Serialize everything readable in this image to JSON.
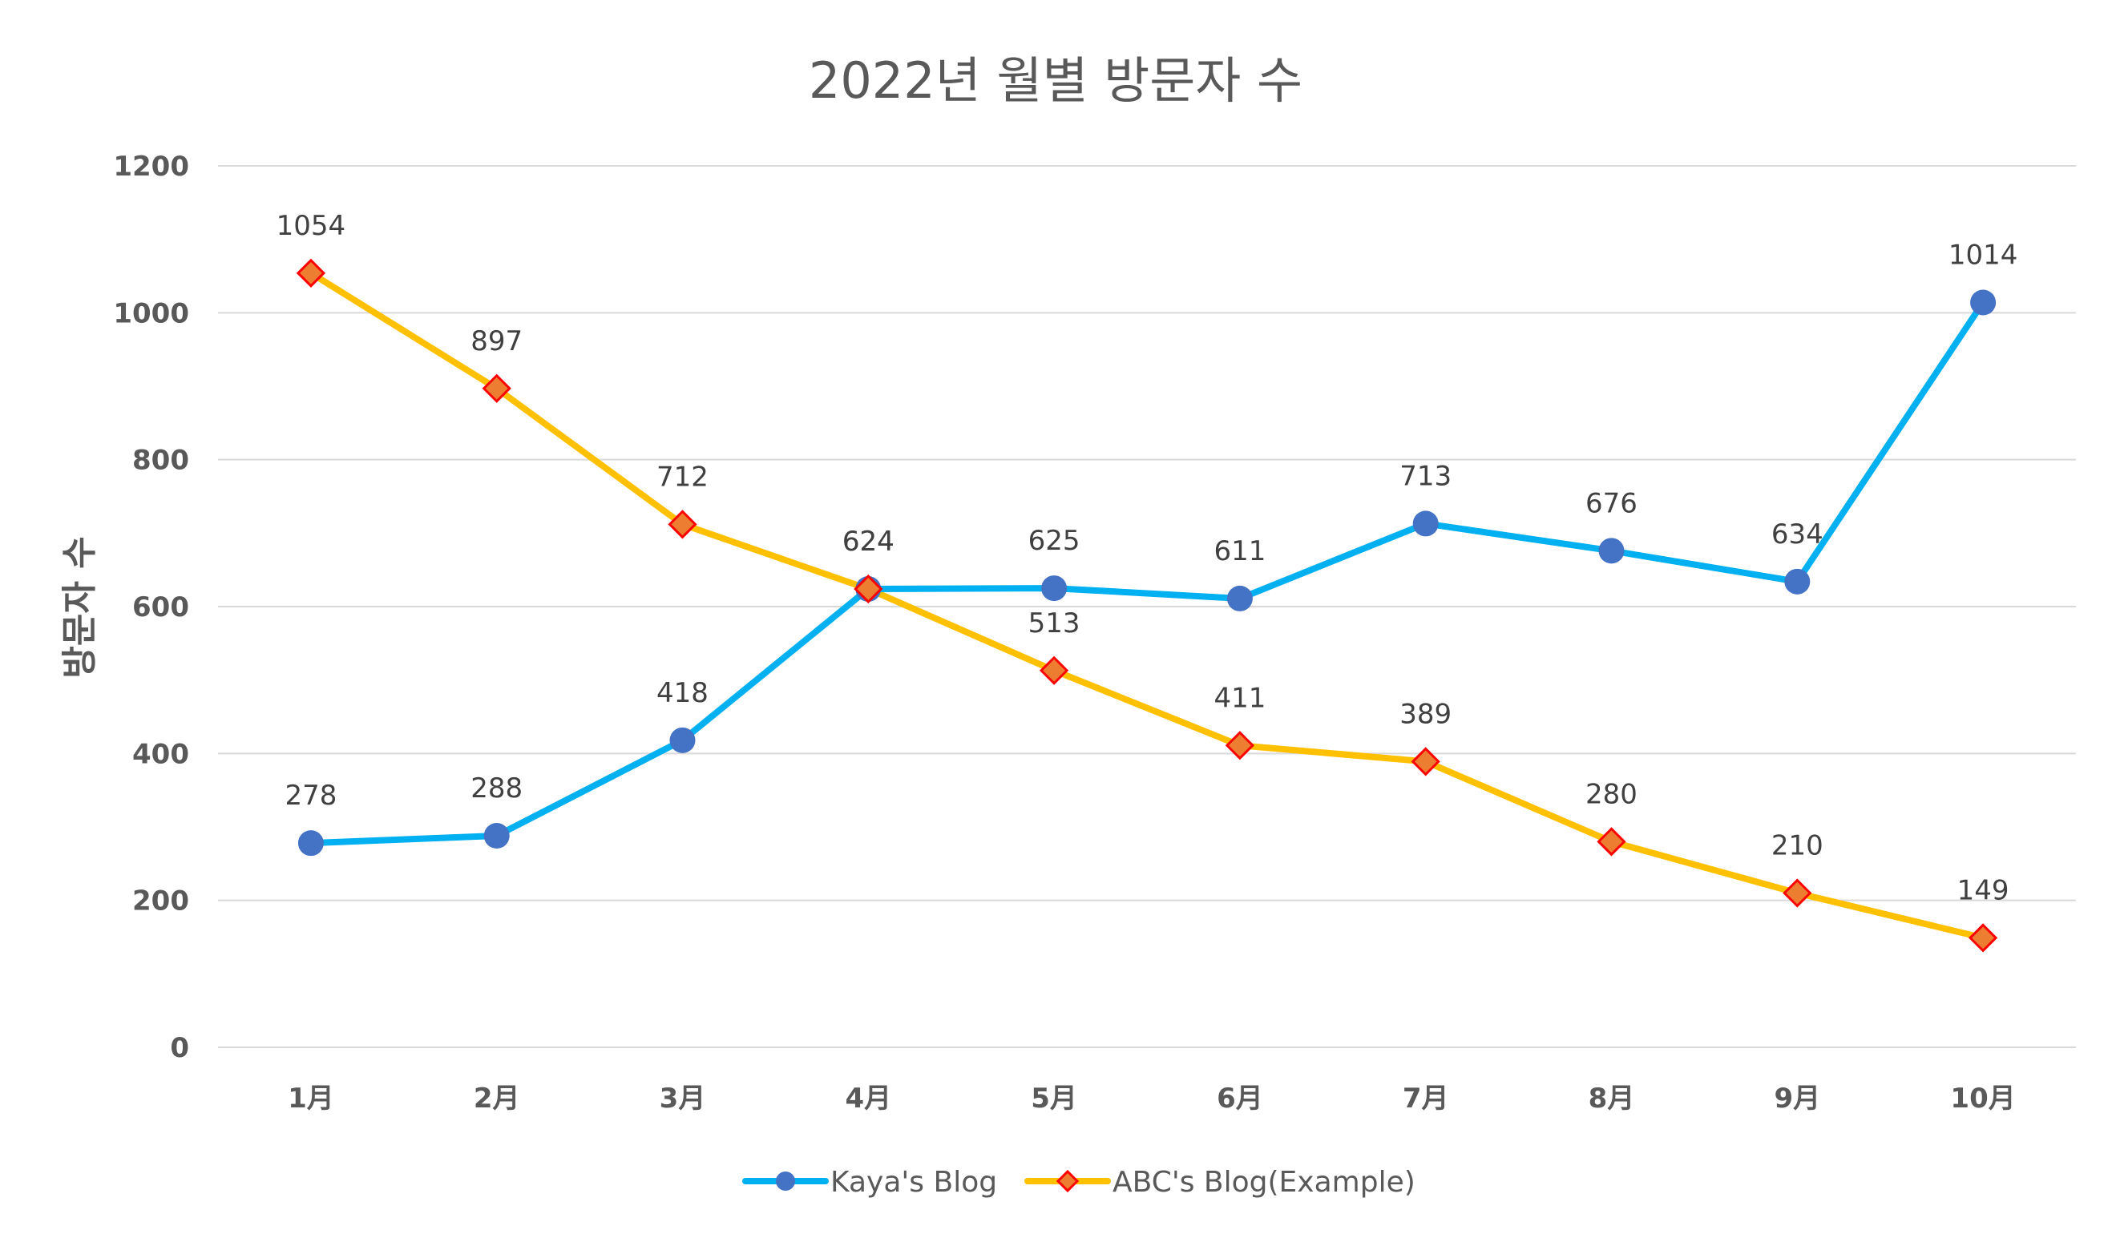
{
  "chart_data": {
    "type": "line",
    "title": "2022년 월별 방문자 수",
    "xlabel": "",
    "ylabel": "방문자 수",
    "categories": [
      "1月",
      "2月",
      "3月",
      "4月",
      "5月",
      "6月",
      "7月",
      "8月",
      "9月",
      "10月"
    ],
    "ylim": [
      0,
      1200
    ],
    "yticks": [
      0,
      200,
      400,
      600,
      800,
      1000,
      1200
    ],
    "grid": true,
    "legend_position": "bottom",
    "series": [
      {
        "name": "Kaya's Blog",
        "values": [
          278,
          288,
          418,
          624,
          625,
          611,
          713,
          676,
          634,
          1014
        ],
        "color": "#00b0f0",
        "marker": "circle",
        "marker_color": "#4472c4"
      },
      {
        "name": "ABC's Blog(Example)",
        "values": [
          1054,
          897,
          712,
          624,
          513,
          411,
          389,
          280,
          210,
          149
        ],
        "color": "#ffc000",
        "marker": "diamond",
        "marker_color": "#ed7d31",
        "marker_edge": "#ff0000"
      }
    ]
  }
}
